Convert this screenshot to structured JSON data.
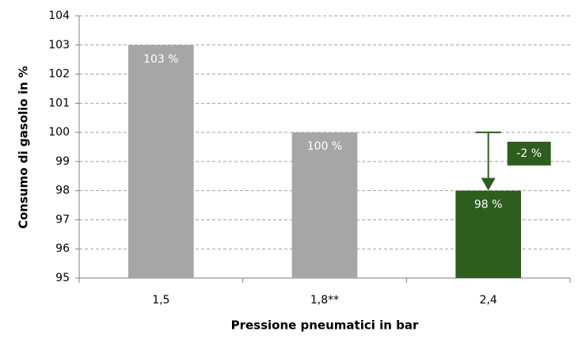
{
  "chart_data": {
    "type": "bar",
    "y_label": "Consumo di gasolio in %",
    "x_label": "Pressione pneumatici in bar",
    "categories": [
      "1,5",
      "1,8**",
      "2,4"
    ],
    "values": [
      103,
      100,
      98
    ],
    "value_labels": [
      "103 %",
      "100 %",
      "98 %"
    ],
    "colors": [
      "#a6a6a6",
      "#a6a6a6",
      "#2e5e1e"
    ],
    "ylim": [
      95,
      104
    ],
    "yticks": [
      95,
      96,
      97,
      98,
      99,
      100,
      101,
      102,
      103,
      104
    ],
    "grid": true,
    "annotation": {
      "text": "-2 %",
      "color": "#2e5e1e"
    }
  }
}
